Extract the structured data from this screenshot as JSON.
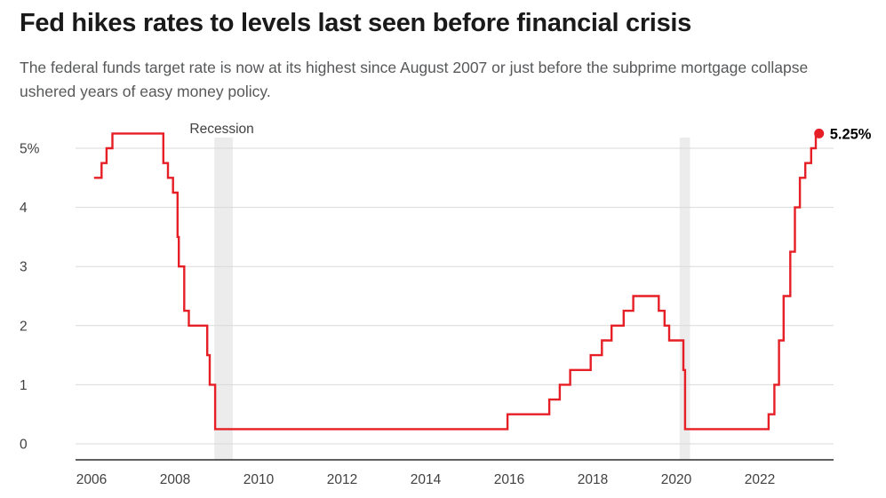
{
  "header": {
    "title": "Fed hikes rates to levels last seen before financial crisis",
    "subtitle": "The federal funds target rate is now at its highest since August 2007 or just before the subprime mortgage collapse ushered years of easy money policy."
  },
  "chart_data": {
    "type": "line",
    "subtype": "step",
    "title": "Fed hikes rates to levels last seen before financial crisis",
    "xlabel": "",
    "ylabel": "",
    "grid": "horizontal",
    "legend": "none",
    "x_range": [
      2005.62,
      2023.76
    ],
    "ylim": [
      0,
      5.4
    ],
    "x_ticks": [
      {
        "value": 2006,
        "label": "2006"
      },
      {
        "value": 2008,
        "label": "2008"
      },
      {
        "value": 2010,
        "label": "2010"
      },
      {
        "value": 2012,
        "label": "2012"
      },
      {
        "value": 2014,
        "label": "2014"
      },
      {
        "value": 2016,
        "label": "2016"
      },
      {
        "value": 2018,
        "label": "2018"
      },
      {
        "value": 2020,
        "label": "2020"
      },
      {
        "value": 2022,
        "label": "2022"
      }
    ],
    "y_ticks": [
      {
        "value": 5,
        "label": "5%"
      },
      {
        "value": 4,
        "label": "4"
      },
      {
        "value": 3,
        "label": "3"
      },
      {
        "value": 2,
        "label": "2"
      },
      {
        "value": 1,
        "label": "1"
      },
      {
        "value": 0,
        "label": "0"
      }
    ],
    "series": [
      {
        "name": "Federal funds target rate",
        "points": [
          [
            2006.06,
            4.5
          ],
          [
            2006.24,
            4.75
          ],
          [
            2006.36,
            5.0
          ],
          [
            2006.5,
            5.25
          ],
          [
            2007.72,
            4.75
          ],
          [
            2007.83,
            4.5
          ],
          [
            2007.95,
            4.25
          ],
          [
            2008.06,
            3.5
          ],
          [
            2008.09,
            3.0
          ],
          [
            2008.22,
            2.25
          ],
          [
            2008.33,
            2.0
          ],
          [
            2008.77,
            1.5
          ],
          [
            2008.83,
            1.0
          ],
          [
            2008.96,
            0.25
          ],
          [
            2015.96,
            0.5
          ],
          [
            2016.96,
            0.75
          ],
          [
            2017.21,
            1.0
          ],
          [
            2017.46,
            1.25
          ],
          [
            2017.95,
            1.5
          ],
          [
            2018.22,
            1.75
          ],
          [
            2018.45,
            2.0
          ],
          [
            2018.74,
            2.25
          ],
          [
            2018.97,
            2.5
          ],
          [
            2019.58,
            2.25
          ],
          [
            2019.72,
            2.0
          ],
          [
            2019.83,
            1.75
          ],
          [
            2020.17,
            1.25
          ],
          [
            2020.21,
            0.25
          ],
          [
            2022.21,
            0.5
          ],
          [
            2022.35,
            1.0
          ],
          [
            2022.46,
            1.75
          ],
          [
            2022.57,
            2.5
          ],
          [
            2022.73,
            3.25
          ],
          [
            2022.84,
            4.0
          ],
          [
            2022.96,
            4.5
          ],
          [
            2023.09,
            4.75
          ],
          [
            2023.23,
            5.0
          ],
          [
            2023.34,
            5.25
          ]
        ]
      }
    ],
    "end_point": {
      "x": 2023.42,
      "y": 5.25,
      "label": "5.25%"
    },
    "recession_bands": [
      [
        2008.94,
        2009.38
      ],
      [
        2020.08,
        2020.33
      ]
    ],
    "recession_label": {
      "text": "Recession",
      "x": 2008.35
    },
    "colors": {
      "line": "#e61e25",
      "grid": "#d9d9d9",
      "band": "#ececec",
      "axis": "#2b2b2b",
      "tick_label": "#414042",
      "title": "#1a1a1a",
      "subtitle": "#57585a",
      "end_label": "#000000"
    }
  }
}
